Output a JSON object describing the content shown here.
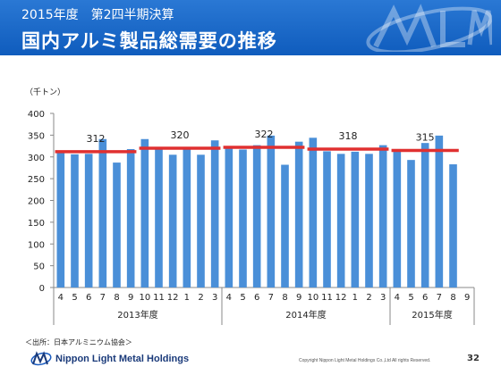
{
  "header": {
    "fiscal_label": "2015年度　第2四半期決算",
    "title": "国内アルミ製品総需要の推移"
  },
  "chart_data": {
    "type": "bar",
    "unit_label": "（千トン）",
    "ylim": [
      0,
      400
    ],
    "yticks": [
      0,
      50,
      100,
      150,
      200,
      250,
      300,
      350,
      400
    ],
    "grid": false,
    "bar_color": "#4a8fd8",
    "avg_line_color": "#e03030",
    "categories": [
      "4",
      "5",
      "6",
      "7",
      "8",
      "9",
      "10",
      "11",
      "12",
      "1",
      "2",
      "3",
      "4",
      "5",
      "6",
      "7",
      "8",
      "9",
      "10",
      "11",
      "12",
      "1",
      "2",
      "3",
      "4",
      "5",
      "6",
      "7",
      "8",
      "9"
    ],
    "values": [
      313,
      306,
      307,
      341,
      287,
      318,
      341,
      318,
      305,
      320,
      305,
      338,
      325,
      317,
      327,
      349,
      282,
      335,
      344,
      313,
      307,
      312,
      307,
      327,
      318,
      293,
      332,
      349,
      283,
      null
    ],
    "year_groups": [
      {
        "label": "2013年度",
        "start": 0,
        "end": 11
      },
      {
        "label": "2014年度",
        "start": 12,
        "end": 23
      },
      {
        "label": "2015年度",
        "start": 24,
        "end": 29
      }
    ],
    "averages": [
      {
        "value": 312,
        "label": "312",
        "start": 0,
        "end": 5
      },
      {
        "value": 320,
        "label": "320",
        "start": 6,
        "end": 11
      },
      {
        "value": 322,
        "label": "322",
        "start": 12,
        "end": 17
      },
      {
        "value": 318,
        "label": "318",
        "start": 18,
        "end": 23
      },
      {
        "value": 315,
        "label": "315",
        "start": 24,
        "end": 28
      }
    ]
  },
  "footer": {
    "source": "＜出所：日本アルミニウム協会＞",
    "company": "Nippon Light Metal Holdings",
    "copyright": "Copyright Nippon Light Metal Holdings Co.,Ltd All rights Reserved.",
    "page": "32"
  }
}
